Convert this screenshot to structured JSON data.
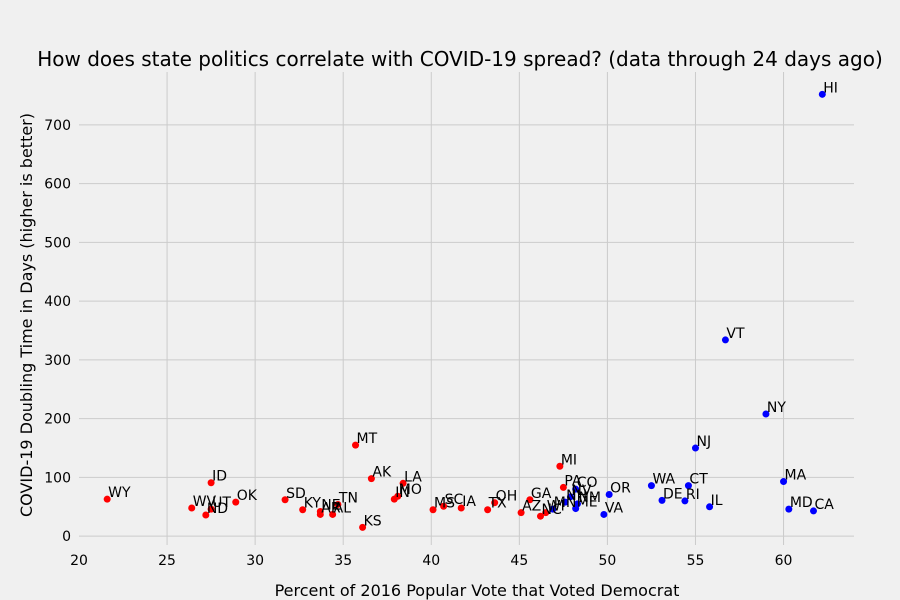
{
  "chart_data": {
    "type": "scatter",
    "title": "How does state politics correlate with COVID-19 spread? (data through 24 days ago)",
    "xlabel": "Percent of 2016 Popular Vote that Voted Democrat",
    "ylabel": "COVID-19 Doubling Time in Days (higher is better)",
    "xlim": [
      20,
      64
    ],
    "ylim": [
      -15,
      790
    ],
    "xticks": [
      20,
      25,
      30,
      35,
      40,
      45,
      50,
      55,
      60
    ],
    "yticks": [
      0,
      100,
      200,
      300,
      400,
      500,
      600,
      700
    ],
    "grid": true,
    "colors": {
      "republican": "#ff0000",
      "democrat": "#0000ff"
    },
    "points": [
      {
        "label": "HI",
        "x": 62.2,
        "y": 752,
        "party": "D"
      },
      {
        "label": "VT",
        "x": 56.7,
        "y": 334,
        "party": "D"
      },
      {
        "label": "NY",
        "x": 59.0,
        "y": 208,
        "party": "D"
      },
      {
        "label": "NJ",
        "x": 55.0,
        "y": 150,
        "party": "D"
      },
      {
        "label": "MT",
        "x": 35.7,
        "y": 155,
        "party": "R"
      },
      {
        "label": "MI",
        "x": 47.3,
        "y": 119,
        "party": "R"
      },
      {
        "label": "MA",
        "x": 60.0,
        "y": 93,
        "party": "D"
      },
      {
        "label": "ID",
        "x": 27.5,
        "y": 91,
        "party": "R"
      },
      {
        "label": "AK",
        "x": 36.6,
        "y": 98,
        "party": "R"
      },
      {
        "label": "LA",
        "x": 38.4,
        "y": 90,
        "party": "R"
      },
      {
        "label": "WA",
        "x": 52.5,
        "y": 86,
        "party": "D"
      },
      {
        "label": "CT",
        "x": 54.6,
        "y": 86,
        "party": "D"
      },
      {
        "label": "PA",
        "x": 47.5,
        "y": 83,
        "party": "R"
      },
      {
        "label": "CO",
        "x": 48.2,
        "y": 80,
        "party": "D"
      },
      {
        "label": "OR",
        "x": 50.1,
        "y": 71,
        "party": "D"
      },
      {
        "label": "NV",
        "x": 47.9,
        "y": 67,
        "party": "D"
      },
      {
        "label": "MO",
        "x": 38.1,
        "y": 68,
        "party": "R"
      },
      {
        "label": "IN",
        "x": 37.9,
        "y": 63,
        "party": "R"
      },
      {
        "label": "WY",
        "x": 21.6,
        "y": 63,
        "party": "R"
      },
      {
        "label": "SD",
        "x": 31.7,
        "y": 62,
        "party": "R"
      },
      {
        "label": "OK",
        "x": 28.9,
        "y": 58,
        "party": "R"
      },
      {
        "label": "GA",
        "x": 45.6,
        "y": 62,
        "party": "R"
      },
      {
        "label": "DE",
        "x": 53.1,
        "y": 61,
        "party": "D"
      },
      {
        "label": "RI",
        "x": 54.4,
        "y": 60,
        "party": "D"
      },
      {
        "label": "NH",
        "x": 47.6,
        "y": 58,
        "party": "D"
      },
      {
        "label": "NM",
        "x": 48.3,
        "y": 55,
        "party": "D"
      },
      {
        "label": "OH",
        "x": 43.6,
        "y": 57,
        "party": "R"
      },
      {
        "label": "TN",
        "x": 34.7,
        "y": 54,
        "party": "R"
      },
      {
        "label": "IL",
        "x": 55.8,
        "y": 50,
        "party": "D"
      },
      {
        "label": "SC",
        "x": 40.7,
        "y": 51,
        "party": "R"
      },
      {
        "label": "IA",
        "x": 41.7,
        "y": 48,
        "party": "R"
      },
      {
        "label": "MS",
        "x": 40.1,
        "y": 45,
        "party": "R"
      },
      {
        "label": "TX",
        "x": 43.2,
        "y": 45,
        "party": "R"
      },
      {
        "label": "ME",
        "x": 48.2,
        "y": 47,
        "party": "D"
      },
      {
        "label": "MN",
        "x": 46.9,
        "y": 46,
        "party": "D"
      },
      {
        "label": "MD",
        "x": 60.3,
        "y": 46,
        "party": "D"
      },
      {
        "label": "CA",
        "x": 61.7,
        "y": 43,
        "party": "D"
      },
      {
        "label": "WV",
        "x": 26.4,
        "y": 48,
        "party": "R"
      },
      {
        "label": "UT",
        "x": 27.5,
        "y": 46,
        "party": "R"
      },
      {
        "label": "KY",
        "x": 32.7,
        "y": 45,
        "party": "R"
      },
      {
        "label": "NE",
        "x": 33.7,
        "y": 42,
        "party": "R"
      },
      {
        "label": "WI",
        "x": 46.5,
        "y": 40,
        "party": "R"
      },
      {
        "label": "VA",
        "x": 49.8,
        "y": 37,
        "party": "D"
      },
      {
        "label": "AR",
        "x": 33.7,
        "y": 37,
        "party": "R"
      },
      {
        "label": "AL",
        "x": 34.4,
        "y": 37,
        "party": "R"
      },
      {
        "label": "AZ",
        "x": 45.1,
        "y": 40,
        "party": "R"
      },
      {
        "label": "NC",
        "x": 46.2,
        "y": 34,
        "party": "R"
      },
      {
        "label": "ND",
        "x": 27.2,
        "y": 36,
        "party": "R"
      },
      {
        "label": "KS",
        "x": 36.1,
        "y": 15,
        "party": "R"
      }
    ]
  }
}
